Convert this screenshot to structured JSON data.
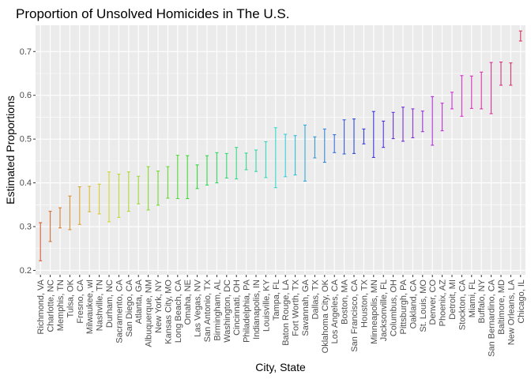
{
  "chart_data": {
    "type": "errorbar",
    "title": "Proportion of Unsolved Homicides in The U.S.",
    "xlabel": "City, State",
    "ylabel": "Estimated Proportions",
    "ylim": [
      0.19,
      0.76
    ],
    "yticks": [
      0.2,
      0.3,
      0.4,
      0.5,
      0.6,
      0.7
    ],
    "ytick_labels": [
      "0.2",
      "0.3",
      "0.4",
      "0.5",
      "0.6",
      "0.7"
    ],
    "grid": true,
    "legend": "none",
    "color_scale": "hue-gradient",
    "panel_background": "#ebebeb",
    "grid_color": "#ffffff",
    "categories": [
      "Richmond, VA",
      "Charlotte, NC",
      "Memphis, TN",
      "Tulsa, OK",
      "Fresno, CA",
      "Milwaukee, wI",
      "Nashville, TN",
      "Durham, NC",
      "Sacramento, CA",
      "San Diego, CA",
      "Atlanta, GA",
      "Albuquerque, NM",
      "New York, NY",
      "Kansas City, MO",
      "Long Beach, CA",
      "Omaha, NE",
      "Las Vegas, NV",
      "San Antonio, TX",
      "Birmingham, AL",
      "Washington, DC",
      "Cincinnati, OH",
      "Philadelphia, PA",
      "Indianapolis, IN",
      "Louisville, KY",
      "Tampa, FL",
      "Baton Rouge, LA",
      "Fort Worth, TX",
      "Savannah, GA",
      "Dallas, TX",
      "Oklahoma City, OK",
      "Los Angeles, CA",
      "Boston, MA",
      "San Francisco, CA",
      "Houston, TX",
      "Minneapolis, MN",
      "Jacksonville, FL",
      "Columbus, OH",
      "Pittsburgh, PA",
      "Oakland, CA",
      "St. Louis, MO",
      "Denver, CO",
      "Phoenix, AZ",
      "Detroit, MI",
      "Stockton, CA",
      "Miami, FL",
      "Buffalo, NY",
      "San Bernardino, CA",
      "Baltimore, MD",
      "New Orleans, LA",
      "Chicago, IL"
    ],
    "lower": [
      0.222,
      0.266,
      0.297,
      0.293,
      0.305,
      0.334,
      0.329,
      0.311,
      0.321,
      0.335,
      0.352,
      0.338,
      0.349,
      0.365,
      0.364,
      0.364,
      0.387,
      0.395,
      0.4,
      0.411,
      0.409,
      0.43,
      0.426,
      0.412,
      0.389,
      0.414,
      0.418,
      0.404,
      0.457,
      0.447,
      0.469,
      0.466,
      0.467,
      0.489,
      0.458,
      0.481,
      0.501,
      0.495,
      0.503,
      0.517,
      0.486,
      0.519,
      0.569,
      0.552,
      0.57,
      0.569,
      0.558,
      0.623,
      0.623,
      0.724
    ],
    "upper": [
      0.309,
      0.335,
      0.343,
      0.37,
      0.391,
      0.392,
      0.397,
      0.425,
      0.42,
      0.425,
      0.415,
      0.437,
      0.427,
      0.437,
      0.463,
      0.462,
      0.441,
      0.462,
      0.469,
      0.467,
      0.481,
      0.468,
      0.475,
      0.494,
      0.526,
      0.511,
      0.508,
      0.532,
      0.505,
      0.523,
      0.51,
      0.544,
      0.546,
      0.523,
      0.563,
      0.541,
      0.561,
      0.573,
      0.569,
      0.564,
      0.597,
      0.582,
      0.607,
      0.645,
      0.644,
      0.653,
      0.675,
      0.676,
      0.674,
      0.747
    ]
  }
}
